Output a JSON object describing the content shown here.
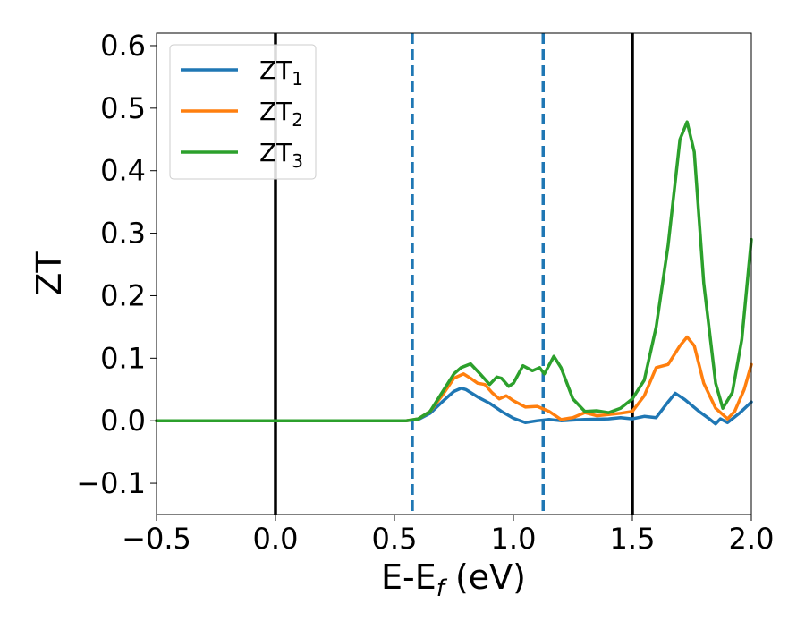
{
  "chart_data": {
    "type": "line",
    "title": "",
    "xlabel": "E-E",
    "xlabel_sub": "f",
    "xlabel_unit": " (eV)",
    "ylabel": "ZT",
    "xlim": [
      -0.5,
      2.0
    ],
    "ylim": [
      -0.15,
      0.62
    ],
    "xticks": [
      -0.5,
      0.0,
      0.5,
      1.0,
      1.5,
      2.0
    ],
    "xtick_labels": [
      "−0.5",
      "0.0",
      "0.5",
      "1.0",
      "1.5",
      "2.0"
    ],
    "yticks": [
      -0.1,
      0.0,
      0.1,
      0.2,
      0.3,
      0.4,
      0.5,
      0.6
    ],
    "ytick_labels": [
      "−0.1",
      "0.0",
      "0.1",
      "0.2",
      "0.3",
      "0.4",
      "0.5",
      "0.6"
    ],
    "grid": false,
    "legend": "upper-left",
    "vlines": [
      {
        "x": 0.0,
        "color": "#000000",
        "style": "solid"
      },
      {
        "x": 0.575,
        "color": "#1f77b4",
        "style": "dashed"
      },
      {
        "x": 1.125,
        "color": "#1f77b4",
        "style": "dashed"
      },
      {
        "x": 1.5,
        "color": "#000000",
        "style": "solid"
      }
    ],
    "series": [
      {
        "name": "ZT",
        "name_sub": "1",
        "color": "#1f77b4",
        "points": [
          [
            -0.5,
            0.0
          ],
          [
            0.55,
            0.0
          ],
          [
            0.6,
            0.002
          ],
          [
            0.65,
            0.012
          ],
          [
            0.7,
            0.03
          ],
          [
            0.75,
            0.047
          ],
          [
            0.78,
            0.052
          ],
          [
            0.8,
            0.05
          ],
          [
            0.85,
            0.038
          ],
          [
            0.9,
            0.028
          ],
          [
            0.95,
            0.015
          ],
          [
            1.0,
            0.004
          ],
          [
            1.05,
            -0.003
          ],
          [
            1.1,
            0.0
          ],
          [
            1.15,
            0.002
          ],
          [
            1.2,
            0.0
          ],
          [
            1.3,
            0.002
          ],
          [
            1.4,
            0.003
          ],
          [
            1.45,
            0.005
          ],
          [
            1.5,
            0.003
          ],
          [
            1.55,
            0.007
          ],
          [
            1.6,
            0.005
          ],
          [
            1.65,
            0.03
          ],
          [
            1.68,
            0.044
          ],
          [
            1.72,
            0.034
          ],
          [
            1.78,
            0.015
          ],
          [
            1.82,
            0.004
          ],
          [
            1.85,
            -0.005
          ],
          [
            1.87,
            0.003
          ],
          [
            1.9,
            -0.003
          ],
          [
            1.95,
            0.012
          ],
          [
            2.0,
            0.03
          ]
        ]
      },
      {
        "name": "ZT",
        "name_sub": "2",
        "color": "#ff7f0e",
        "points": [
          [
            -0.5,
            0.0
          ],
          [
            0.55,
            0.0
          ],
          [
            0.6,
            0.003
          ],
          [
            0.65,
            0.015
          ],
          [
            0.7,
            0.04
          ],
          [
            0.75,
            0.068
          ],
          [
            0.79,
            0.075
          ],
          [
            0.82,
            0.068
          ],
          [
            0.85,
            0.06
          ],
          [
            0.88,
            0.058
          ],
          [
            0.91,
            0.045
          ],
          [
            0.94,
            0.035
          ],
          [
            0.97,
            0.04
          ],
          [
            1.0,
            0.032
          ],
          [
            1.05,
            0.022
          ],
          [
            1.1,
            0.023
          ],
          [
            1.15,
            0.015
          ],
          [
            1.2,
            0.002
          ],
          [
            1.25,
            0.005
          ],
          [
            1.3,
            0.013
          ],
          [
            1.35,
            0.008
          ],
          [
            1.4,
            0.01
          ],
          [
            1.45,
            0.012
          ],
          [
            1.5,
            0.015
          ],
          [
            1.55,
            0.04
          ],
          [
            1.6,
            0.085
          ],
          [
            1.65,
            0.09
          ],
          [
            1.7,
            0.12
          ],
          [
            1.73,
            0.134
          ],
          [
            1.76,
            0.12
          ],
          [
            1.8,
            0.06
          ],
          [
            1.85,
            0.02
          ],
          [
            1.9,
            0.003
          ],
          [
            1.93,
            0.015
          ],
          [
            1.97,
            0.05
          ],
          [
            2.0,
            0.09
          ]
        ]
      },
      {
        "name": "ZT",
        "name_sub": "3",
        "color": "#2ca02c",
        "points": [
          [
            -0.5,
            0.0
          ],
          [
            0.55,
            0.0
          ],
          [
            0.6,
            0.003
          ],
          [
            0.65,
            0.015
          ],
          [
            0.7,
            0.045
          ],
          [
            0.75,
            0.075
          ],
          [
            0.78,
            0.085
          ],
          [
            0.82,
            0.091
          ],
          [
            0.86,
            0.075
          ],
          [
            0.9,
            0.058
          ],
          [
            0.93,
            0.07
          ],
          [
            0.95,
            0.068
          ],
          [
            0.98,
            0.055
          ],
          [
            1.0,
            0.06
          ],
          [
            1.04,
            0.088
          ],
          [
            1.08,
            0.08
          ],
          [
            1.11,
            0.085
          ],
          [
            1.13,
            0.075
          ],
          [
            1.17,
            0.103
          ],
          [
            1.2,
            0.085
          ],
          [
            1.25,
            0.035
          ],
          [
            1.3,
            0.015
          ],
          [
            1.35,
            0.016
          ],
          [
            1.4,
            0.013
          ],
          [
            1.45,
            0.02
          ],
          [
            1.5,
            0.035
          ],
          [
            1.55,
            0.065
          ],
          [
            1.6,
            0.15
          ],
          [
            1.65,
            0.28
          ],
          [
            1.7,
            0.45
          ],
          [
            1.73,
            0.478
          ],
          [
            1.76,
            0.43
          ],
          [
            1.8,
            0.22
          ],
          [
            1.85,
            0.06
          ],
          [
            1.88,
            0.02
          ],
          [
            1.92,
            0.045
          ],
          [
            1.96,
            0.13
          ],
          [
            2.0,
            0.29
          ]
        ]
      }
    ]
  }
}
